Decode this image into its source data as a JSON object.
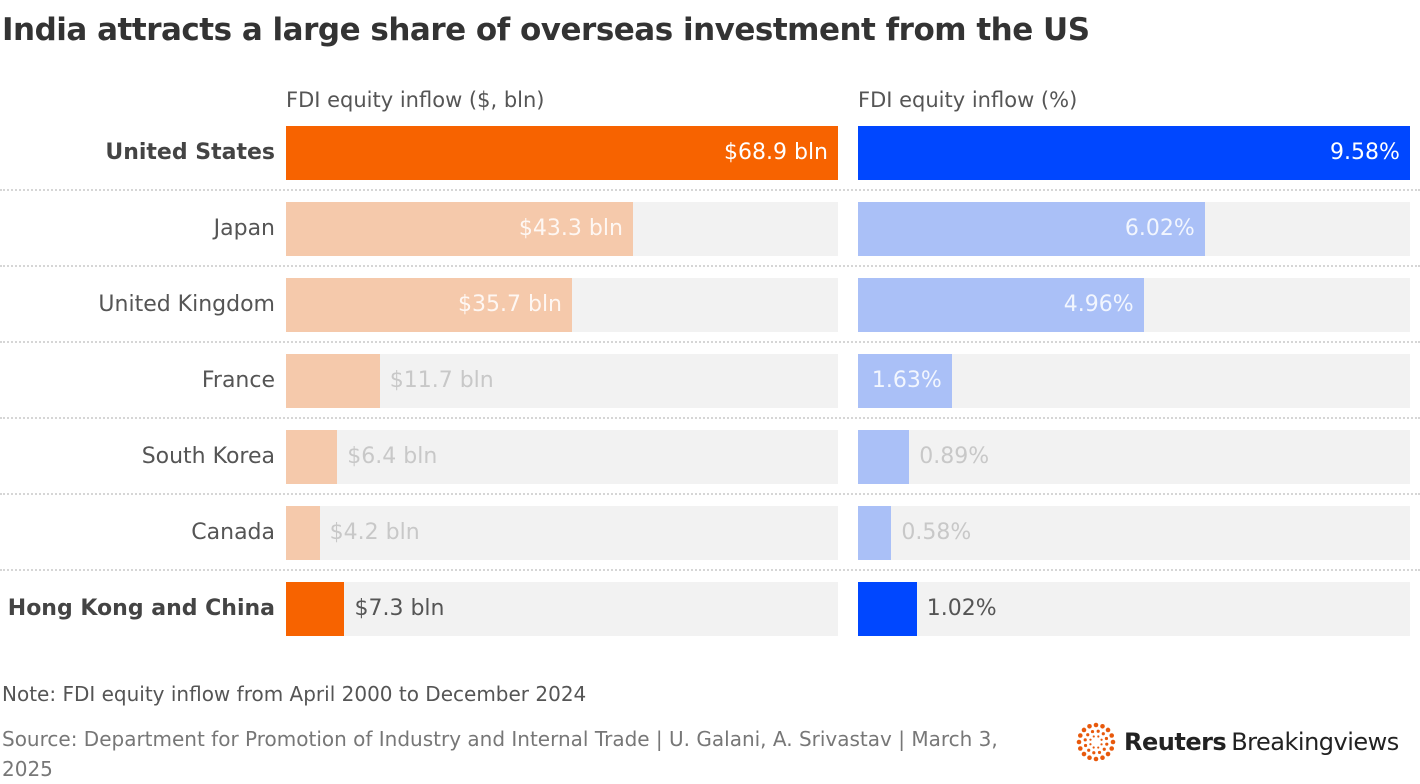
{
  "title": "India attracts a large share of overseas investment from the US",
  "chart_data": [
    {
      "type": "bar",
      "orientation": "horizontal",
      "title": "FDI equity inflow ($, bln)",
      "categories": [
        "United States",
        "Japan",
        "United Kingdom",
        "France",
        "South Korea",
        "Canada",
        "Hong Kong and China"
      ],
      "values": [
        68.9,
        43.3,
        35.7,
        11.7,
        6.4,
        4.2,
        7.3
      ],
      "labels": [
        "$68.9 bln",
        "$43.3 bln",
        "$35.7 bln",
        "$11.7 bln",
        "$6.4 bln",
        "$4.2 bln",
        "$7.3 bln"
      ],
      "xlim": [
        0,
        68.9
      ],
      "highlighted": [
        "United States",
        "Hong Kong and China"
      ],
      "colors": {
        "highlight": "#f76300",
        "normal": "#f5c9ab",
        "track": "#f2f2f2"
      }
    },
    {
      "type": "bar",
      "orientation": "horizontal",
      "title": "FDI equity inflow (%)",
      "categories": [
        "United States",
        "Japan",
        "United Kingdom",
        "France",
        "South Korea",
        "Canada",
        "Hong Kong and China"
      ],
      "values": [
        9.58,
        6.02,
        4.96,
        1.63,
        0.89,
        0.58,
        1.02
      ],
      "labels": [
        "9.58%",
        "6.02%",
        "4.96%",
        "1.63%",
        "0.89%",
        "0.58%",
        "1.02%"
      ],
      "xlim": [
        0,
        9.58
      ],
      "highlighted": [
        "United States",
        "Hong Kong and China"
      ],
      "colors": {
        "highlight": "#0047ff",
        "normal": "#aac0f7",
        "track": "#f2f2f2"
      }
    }
  ],
  "note": "Note: FDI equity inflow from April 2000 to December 2024",
  "source": "Source: Department for Promotion of Industry and Internal Trade | U. Galani, A. Srivastav | March 3, 2025",
  "logo": {
    "bold": "Reuters",
    "regular": "Breakingviews",
    "color": "#e8590c"
  }
}
